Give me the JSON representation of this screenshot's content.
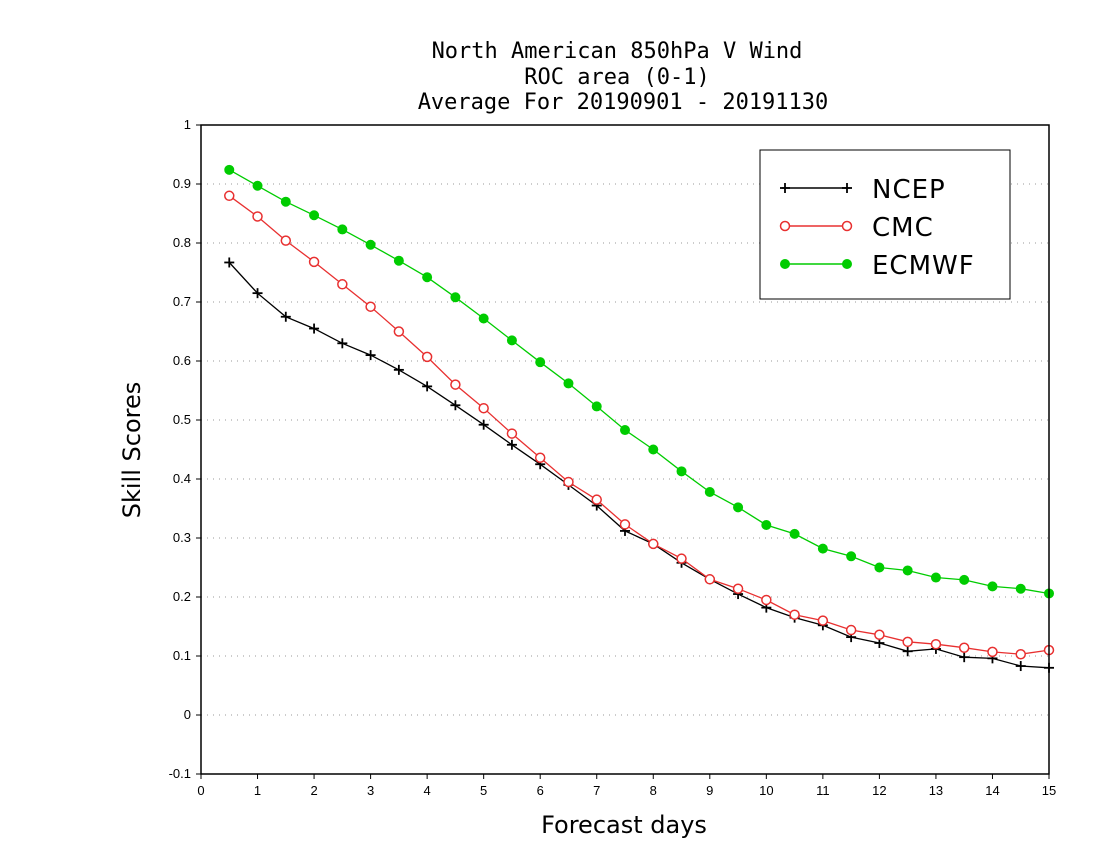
{
  "chart_data": {
    "type": "line",
    "title_lines": [
      "North American 850hPa V Wind",
      "ROC area (0-1)",
      "Average For 20190901 - 20191130"
    ],
    "xlabel": "Forecast days",
    "ylabel": "Skill Scores",
    "xlim": [
      0,
      15
    ],
    "ylim": [
      -0.1,
      1
    ],
    "xticks": [
      "0",
      "1",
      "2",
      "3",
      "4",
      "5",
      "6",
      "7",
      "8",
      "9",
      "10",
      "11",
      "12",
      "13",
      "14",
      "15"
    ],
    "yticks": [
      "-0.1",
      "0",
      "0.1",
      "0.2",
      "0.3",
      "0.4",
      "0.5",
      "0.6",
      "0.7",
      "0.8",
      "0.9",
      "1"
    ],
    "grid": "horizontal dotted",
    "legend_position": "top-right",
    "x": [
      0.5,
      1,
      1.5,
      2,
      2.5,
      3,
      3.5,
      4,
      4.5,
      5,
      5.5,
      6,
      6.5,
      7,
      7.5,
      8,
      8.5,
      9,
      9.5,
      10,
      10.5,
      11,
      11.5,
      12,
      12.5,
      13,
      13.5,
      14,
      14.5,
      15
    ],
    "series": [
      {
        "name": "NCEP",
        "color": "#000000",
        "marker": "plus",
        "values": [
          0.767,
          0.715,
          0.675,
          0.655,
          0.63,
          0.61,
          0.585,
          0.557,
          0.525,
          0.492,
          0.458,
          0.425,
          0.39,
          0.355,
          0.312,
          0.29,
          0.258,
          0.23,
          0.205,
          0.182,
          0.165,
          0.152,
          0.132,
          0.122,
          0.108,
          0.112,
          0.098,
          0.096,
          0.083,
          0.08
        ]
      },
      {
        "name": "CMC",
        "color": "#e83030",
        "marker": "open-circle",
        "values": [
          0.88,
          0.845,
          0.804,
          0.768,
          0.73,
          0.692,
          0.65,
          0.607,
          0.56,
          0.52,
          0.477,
          0.436,
          0.395,
          0.365,
          0.323,
          0.29,
          0.265,
          0.23,
          0.214,
          0.195,
          0.17,
          0.16,
          0.144,
          0.136,
          0.124,
          0.12,
          0.114,
          0.107,
          0.103,
          0.11
        ]
      },
      {
        "name": "ECMWF",
        "color": "#00cc00",
        "marker": "filled-circle",
        "values": [
          0.924,
          0.897,
          0.87,
          0.847,
          0.823,
          0.797,
          0.77,
          0.742,
          0.708,
          0.672,
          0.635,
          0.598,
          0.562,
          0.523,
          0.483,
          0.45,
          0.413,
          0.378,
          0.352,
          0.322,
          0.307,
          0.282,
          0.269,
          0.25,
          0.245,
          0.233,
          0.229,
          0.218,
          0.214,
          0.206
        ]
      }
    ]
  }
}
